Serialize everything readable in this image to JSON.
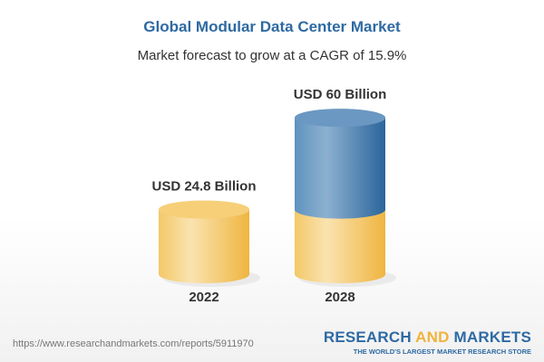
{
  "title": "Global Modular Data Center Market",
  "subtitle": "Market forecast to grow at a CAGR of 15.9%",
  "chart_data": {
    "type": "bar",
    "style": "3d-cylinder",
    "title": "Global Modular Data Center Market",
    "subtitle": "Market forecast to grow at a CAGR of 15.9%",
    "categories": [
      "2022",
      "2028"
    ],
    "values": [
      24.8,
      60
    ],
    "unit": "USD Billion",
    "data_labels": [
      "USD 24.8 Billion",
      "USD 60 Billion"
    ],
    "colors": {
      "base": "#f3c35a",
      "growth": "#3f7bb0"
    },
    "grid": false,
    "legend": "none"
  },
  "footer": {
    "url": "https://www.researchandmarkets.com/reports/5911970",
    "logo_word1": "RESEARCH",
    "logo_word2": "AND",
    "logo_word3": "MARKETS",
    "logo_tagline": "THE WORLD'S LARGEST MARKET RESEARCH STORE"
  }
}
